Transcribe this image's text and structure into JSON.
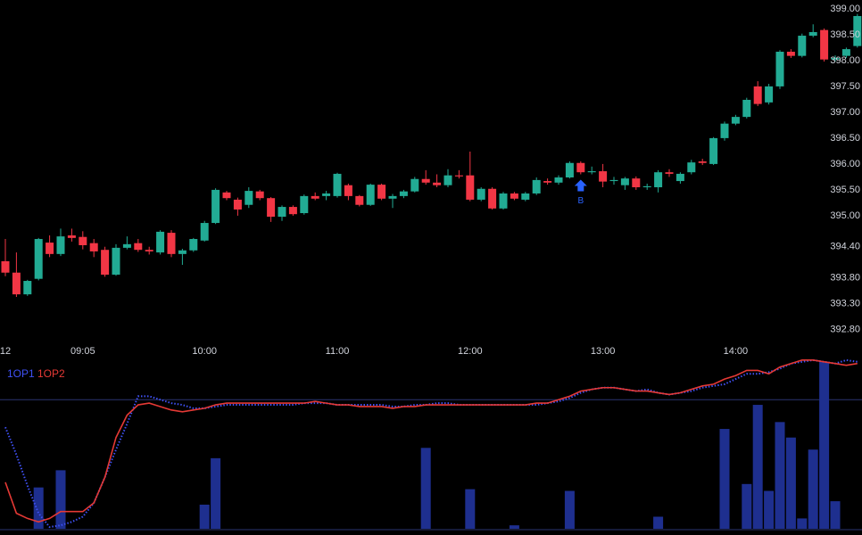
{
  "chart_data": [
    {
      "type": "candlestick",
      "categories": [
        "12",
        null,
        null,
        null,
        null,
        null,
        null,
        "09:05",
        null,
        null,
        null,
        null,
        null,
        null,
        null,
        null,
        null,
        null,
        "10:00",
        null,
        null,
        null,
        null,
        null,
        null,
        null,
        null,
        null,
        null,
        null,
        "11:00",
        null,
        null,
        null,
        null,
        null,
        null,
        null,
        null,
        null,
        null,
        null,
        "12:00",
        null,
        null,
        null,
        null,
        null,
        null,
        null,
        null,
        null,
        null,
        null,
        "13:00",
        null,
        null,
        null,
        null,
        null,
        null,
        null,
        null,
        null,
        null,
        null,
        "14:00",
        null,
        null,
        null,
        null,
        null,
        null,
        null,
        null,
        null,
        null,
        null
      ],
      "open": [
        394.12,
        393.9,
        393.48,
        393.78,
        394.48,
        394.26,
        394.62,
        394.59,
        394.47,
        394.34,
        393.86,
        394.38,
        394.47,
        394.34,
        394.29,
        394.67,
        394.26,
        394.33,
        394.52,
        394.86,
        395.45,
        395.31,
        395.21,
        395.47,
        395.34,
        394.98,
        395.17,
        395.05,
        395.38,
        395.38,
        395.38,
        395.59,
        395.38,
        395.21,
        395.6,
        395.33,
        395.38,
        395.47,
        395.71,
        395.64,
        395.59,
        395.78,
        395.78,
        395.31,
        395.52,
        395.14,
        395.43,
        395.31,
        395.43,
        395.67,
        395.64,
        395.74,
        396.02,
        395.84,
        395.86,
        395.67,
        395.59,
        395.72,
        395.55,
        395.55,
        395.84,
        395.67,
        395.84,
        396.05,
        396.0,
        396.5,
        396.78,
        396.91,
        397.5,
        397.19,
        397.5,
        398.17,
        398.09,
        398.48,
        398.59,
        398.02,
        398.09,
        398.28
      ],
      "high": [
        394.55,
        394.29,
        393.76,
        394.57,
        394.62,
        394.75,
        394.75,
        394.7,
        394.55,
        394.4,
        394.45,
        394.6,
        394.55,
        394.4,
        394.72,
        394.72,
        394.36,
        394.57,
        394.9,
        395.53,
        395.48,
        395.35,
        395.55,
        395.5,
        395.36,
        395.2,
        395.2,
        395.41,
        395.45,
        395.48,
        395.83,
        395.62,
        395.4,
        395.62,
        395.62,
        395.42,
        395.5,
        395.75,
        395.88,
        395.8,
        395.9,
        395.88,
        396.24,
        395.55,
        395.55,
        395.46,
        395.46,
        395.46,
        395.74,
        395.72,
        395.78,
        396.05,
        396.05,
        395.95,
        396.0,
        395.75,
        395.75,
        395.76,
        395.62,
        395.88,
        395.9,
        395.84,
        396.08,
        396.1,
        396.52,
        396.82,
        396.95,
        397.28,
        397.6,
        397.55,
        398.2,
        398.22,
        398.52,
        398.7,
        398.62,
        398.1,
        398.25,
        398.9
      ],
      "low": [
        393.83,
        393.43,
        393.45,
        393.75,
        394.2,
        394.22,
        394.5,
        394.35,
        394.2,
        393.82,
        393.84,
        394.35,
        394.3,
        394.25,
        394.25,
        394.2,
        394.05,
        394.3,
        394.5,
        394.84,
        395.3,
        395.0,
        395.15,
        395.3,
        394.88,
        394.9,
        395.0,
        395.02,
        395.3,
        395.3,
        395.35,
        395.3,
        395.18,
        395.19,
        395.3,
        395.15,
        395.34,
        395.45,
        395.6,
        395.55,
        395.55,
        395.72,
        395.28,
        395.28,
        395.12,
        395.12,
        395.3,
        395.28,
        395.4,
        395.6,
        395.6,
        395.72,
        395.8,
        395.8,
        395.55,
        395.6,
        395.5,
        395.5,
        395.5,
        395.45,
        395.75,
        395.62,
        395.8,
        395.98,
        395.98,
        396.45,
        396.75,
        396.88,
        397.12,
        397.15,
        397.45,
        398.05,
        398.06,
        398.45,
        397.98,
        397.98,
        398.05,
        398.25
      ],
      "close": [
        393.9,
        393.48,
        393.74,
        394.55,
        394.26,
        394.6,
        394.57,
        394.43,
        394.31,
        393.86,
        394.38,
        394.45,
        394.34,
        394.31,
        394.69,
        394.26,
        394.33,
        394.55,
        394.86,
        395.5,
        395.34,
        395.12,
        395.48,
        395.34,
        394.98,
        395.17,
        395.03,
        395.38,
        395.33,
        395.43,
        395.81,
        395.38,
        395.21,
        395.6,
        395.33,
        395.38,
        395.47,
        395.71,
        395.64,
        395.59,
        395.78,
        395.76,
        395.31,
        395.52,
        395.14,
        395.43,
        395.33,
        395.43,
        395.69,
        395.64,
        395.74,
        396.02,
        395.84,
        395.86,
        395.66,
        395.69,
        395.72,
        395.55,
        395.57,
        395.84,
        395.81,
        395.81,
        396.03,
        396.02,
        396.5,
        396.78,
        396.91,
        397.24,
        397.16,
        397.5,
        398.17,
        398.09,
        398.48,
        398.55,
        398.02,
        398.05,
        398.22,
        398.86
      ],
      "up_color": "#22ab94",
      "down_color": "#f23645",
      "ylim": [
        392.62,
        399.17
      ],
      "yticks": [
        {
          "value": 399.0,
          "label": "399.00"
        },
        {
          "value": 398.5,
          "label": "398.50"
        },
        {
          "value": 398.0,
          "label": "398.00"
        },
        {
          "value": 397.5,
          "label": "397.50"
        },
        {
          "value": 397.0,
          "label": "397.00"
        },
        {
          "value": 396.5,
          "label": "396.50"
        },
        {
          "value": 396.0,
          "label": "396.00"
        },
        {
          "value": 395.5,
          "label": "395.50"
        },
        {
          "value": 395.0,
          "label": "395.00"
        },
        {
          "value": 394.4,
          "label": "394.40"
        },
        {
          "value": 393.8,
          "label": "393.80"
        },
        {
          "value": 393.3,
          "label": "393.30"
        },
        {
          "value": 392.8,
          "label": "392.80"
        }
      ],
      "grid": false,
      "annotations": [
        {
          "text": "B",
          "index": 52,
          "color": "#2962ff"
        }
      ]
    },
    {
      "type": "indicator",
      "ylim": [
        0,
        100
      ],
      "hline": 75,
      "hline_color": "#2a3470",
      "series": [
        {
          "name": "1OP1",
          "color": "#3f51f5",
          "dash": true,
          "values": [
            59,
            43,
            25,
            9,
            1,
            2,
            4,
            7,
            15,
            30,
            46,
            61,
            77,
            77,
            75,
            73,
            72,
            70,
            70,
            71,
            72,
            72,
            72,
            72,
            72,
            72,
            72,
            73,
            73,
            73,
            72,
            72,
            72,
            72,
            72,
            71,
            71,
            72,
            72,
            73,
            73,
            72,
            72,
            72,
            72,
            72,
            72,
            72,
            72,
            73,
            74,
            76,
            79,
            81,
            82,
            82,
            81,
            80,
            81,
            79,
            78,
            79,
            80,
            82,
            83,
            84,
            87,
            90,
            90,
            91,
            93,
            96,
            97,
            98,
            97,
            96,
            98,
            97
          ]
        },
        {
          "name": "1OP2",
          "color": "#e53935",
          "dash": false,
          "values": [
            27,
            9,
            6,
            4,
            6,
            10,
            10,
            10,
            15,
            30,
            53,
            66,
            72,
            73,
            71,
            69,
            68,
            69,
            70,
            72,
            73,
            73,
            73,
            73,
            73,
            73,
            73,
            73,
            74,
            73,
            72,
            72,
            71,
            71,
            71,
            70,
            71,
            71,
            72,
            72,
            72,
            72,
            72,
            72,
            72,
            72,
            72,
            72,
            73,
            73,
            75,
            77,
            80,
            81,
            82,
            82,
            81,
            80,
            80,
            79,
            78,
            79,
            81,
            83,
            84,
            87,
            89,
            92,
            92,
            90,
            94,
            96,
            98,
            98,
            97,
            96,
            95,
            96
          ]
        }
      ],
      "bars": {
        "color": "#1e2f8f",
        "ylim": [
          0,
          100
        ],
        "values": [
          0,
          0,
          0,
          24,
          0,
          34,
          0,
          0,
          0,
          0,
          0,
          0,
          0,
          0,
          0,
          0,
          0,
          0,
          14,
          41,
          0,
          0,
          0,
          0,
          0,
          0,
          0,
          0,
          0,
          0,
          0,
          0,
          0,
          0,
          0,
          0,
          0,
          0,
          47,
          0,
          0,
          0,
          23,
          0,
          0,
          0,
          2,
          0,
          0,
          0,
          0,
          22,
          0,
          0,
          0,
          0,
          0,
          0,
          0,
          7,
          0,
          0,
          0,
          0,
          0,
          58,
          0,
          26,
          72,
          22,
          62,
          53,
          6,
          46,
          97,
          16,
          0,
          0
        ]
      }
    }
  ]
}
